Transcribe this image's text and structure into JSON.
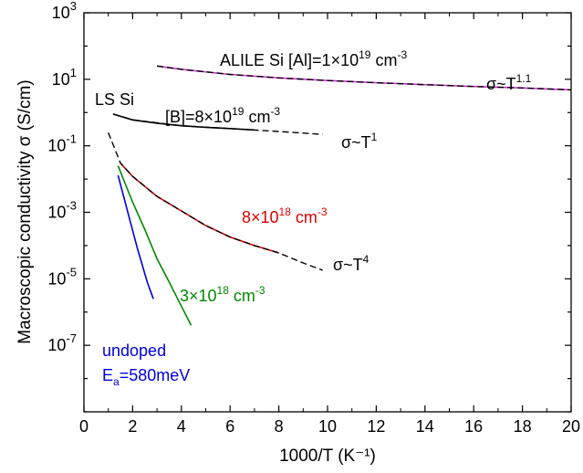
{
  "chart_data": {
    "type": "line",
    "ylabel": "Macroscopic conductivity σ (S/cm)",
    "xlabel": "1000/T (K⁻¹)",
    "xlim": [
      0,
      20
    ],
    "ylim_log10": [
      -9,
      3
    ],
    "y_scale": "log",
    "x_ticks": [
      0,
      2,
      4,
      6,
      8,
      10,
      12,
      14,
      16,
      18,
      20
    ],
    "y_ticks_exp": [
      3,
      1,
      -1,
      -3,
      -5,
      -7
    ],
    "series": [
      {
        "name": "ALILE Si [Al]=1×10^19 cm^-3",
        "color": "#cc33cc",
        "style": "solid",
        "points": [
          [
            3.0,
            25
          ],
          [
            4,
            20
          ],
          [
            6,
            14
          ],
          [
            8,
            11
          ],
          [
            10,
            9.2
          ],
          [
            12,
            7.9
          ],
          [
            14,
            6.9
          ],
          [
            16,
            6.1
          ],
          [
            18,
            5.5
          ],
          [
            20,
            4.8
          ]
        ]
      },
      {
        "name": "ALILE Si fit",
        "color": "#000000",
        "style": "dashed",
        "points": [
          [
            3.0,
            25
          ],
          [
            4,
            20
          ],
          [
            6,
            14
          ],
          [
            8,
            11
          ],
          [
            10,
            9.2
          ],
          [
            12,
            7.9
          ],
          [
            14,
            6.9
          ],
          [
            16,
            6.1
          ],
          [
            18,
            5.5
          ],
          [
            20,
            4.8
          ]
        ]
      },
      {
        "name": "[B]=8×10^19 cm^-3",
        "color": "#000000",
        "style": "solid",
        "points": [
          [
            1.2,
            0.9
          ],
          [
            2,
            0.6
          ],
          [
            3,
            0.48
          ],
          [
            4,
            0.4
          ],
          [
            5,
            0.36
          ],
          [
            6,
            0.33
          ],
          [
            7,
            0.3
          ]
        ]
      },
      {
        "name": "[B]=8×10^19 fit",
        "color": "#000000",
        "style": "dashed",
        "points": [
          [
            1.2,
            0.9
          ],
          [
            2,
            0.6
          ],
          [
            4,
            0.4
          ],
          [
            6,
            0.33
          ],
          [
            8,
            0.27
          ],
          [
            9.8,
            0.22
          ]
        ]
      },
      {
        "name": "8×10^18 cm^-3",
        "color": "#dd0000",
        "style": "solid",
        "points": [
          [
            1.5,
            0.03
          ],
          [
            2,
            0.012
          ],
          [
            3,
            0.003
          ],
          [
            4,
            0.0011
          ],
          [
            5,
            0.0004
          ],
          [
            6,
            0.00018
          ],
          [
            7,
            0.0001
          ],
          [
            8,
            6e-05
          ]
        ]
      },
      {
        "name": "8×10^18 fit",
        "color": "#000000",
        "style": "dashed",
        "points": [
          [
            1.0,
            0.25
          ],
          [
            1.5,
            0.03
          ],
          [
            2,
            0.012
          ],
          [
            3,
            0.003
          ],
          [
            4,
            0.0011
          ],
          [
            5,
            0.0004
          ],
          [
            6,
            0.00018
          ],
          [
            7,
            0.0001
          ],
          [
            8,
            6e-05
          ],
          [
            9,
            3e-05
          ],
          [
            9.8,
            1.8e-05
          ]
        ]
      },
      {
        "name": "3×10^18 cm^-3",
        "color": "#008800",
        "style": "solid",
        "points": [
          [
            1.4,
            0.025
          ],
          [
            2,
            0.002
          ],
          [
            2.5,
            0.0003
          ],
          [
            3,
            4e-05
          ],
          [
            3.5,
            8e-06
          ],
          [
            4,
            1.5e-06
          ],
          [
            4.4,
            4e-07
          ]
        ]
      },
      {
        "name": "undoped",
        "color": "#0000dd",
        "style": "solid",
        "points": [
          [
            1.4,
            0.013
          ],
          [
            1.8,
            0.001
          ],
          [
            2.2,
            8e-05
          ],
          [
            2.6,
            8e-06
          ],
          [
            2.85,
            2.5e-06
          ]
        ]
      }
    ],
    "annotations": {
      "alile": "ALILE Si [Al]=1×10",
      "alile_exp": "19",
      "alile_unit": " cm",
      "alile_unit_exp": "-3",
      "power_11": "σ~T",
      "power_11_exp": "1.1",
      "ls_si": "LS Si",
      "boron": "[B]=8×10",
      "boron_exp": "19",
      "boron_unit": " cm",
      "boron_unit_exp": "-3",
      "power_1": "σ~T",
      "power_1_exp": "1",
      "red_label": "8×10",
      "red_exp": "18",
      "red_unit": " cm",
      "red_unit_exp": "-3",
      "power_4": "σ~T",
      "power_4_exp": "4",
      "green_label": "3×10",
      "green_exp": "18",
      "green_unit": " cm",
      "green_unit_exp": "-3",
      "undoped": "undoped",
      "ea": "E",
      "ea_sub": "a",
      "ea_val": "=580meV"
    }
  }
}
